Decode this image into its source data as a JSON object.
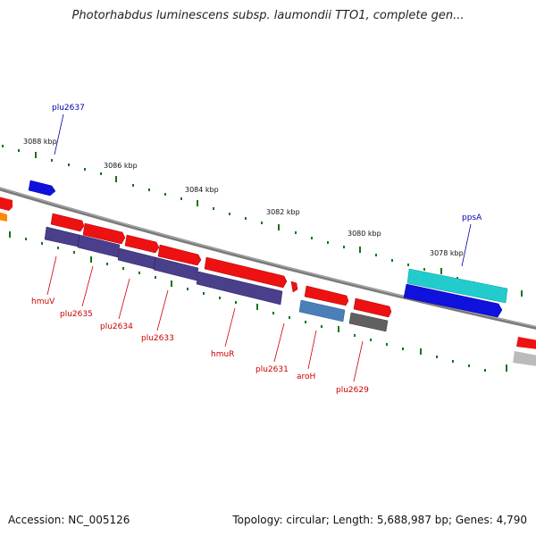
{
  "title": "Photorhabdus luminescens subsp. laumondii TTO1, complete gen...",
  "footer": {
    "accession": "Accession: NC_005126",
    "summary": "Topology: circular; Length: 5,688,987 bp; Genes: 4,790"
  },
  "scale_labels": [
    "3088 kbp",
    "3086 kbp",
    "3084 kbp",
    "3082 kbp",
    "3080 kbp",
    "3078 kbp"
  ],
  "gene_labels": [
    {
      "name": "plu2637",
      "color": "#0000aa"
    },
    {
      "name": "ppsA",
      "color": "#0000aa"
    },
    {
      "name": "hmuV",
      "color": "#cc0000"
    },
    {
      "name": "plu2635",
      "color": "#cc0000"
    },
    {
      "name": "plu2634",
      "color": "#cc0000"
    },
    {
      "name": "plu2633",
      "color": "#cc0000"
    },
    {
      "name": "hmuR",
      "color": "#cc0000"
    },
    {
      "name": "plu2631",
      "color": "#cc0000"
    },
    {
      "name": "aroH",
      "color": "#cc0000"
    },
    {
      "name": "plu2629",
      "color": "#cc0000"
    }
  ],
  "colors": {
    "backbone": "#808080",
    "gene_red": "#ee1111",
    "gene_blue": "#1111dd",
    "gene_cyan": "#22cccc",
    "gene_purple": "#4a3f8a",
    "gene_steel": "#4a7fb8",
    "gene_grey": "#606060",
    "gene_orange": "#ff8800",
    "gene_lightgrey": "#bbbbbb",
    "tick_green": "#117711"
  }
}
